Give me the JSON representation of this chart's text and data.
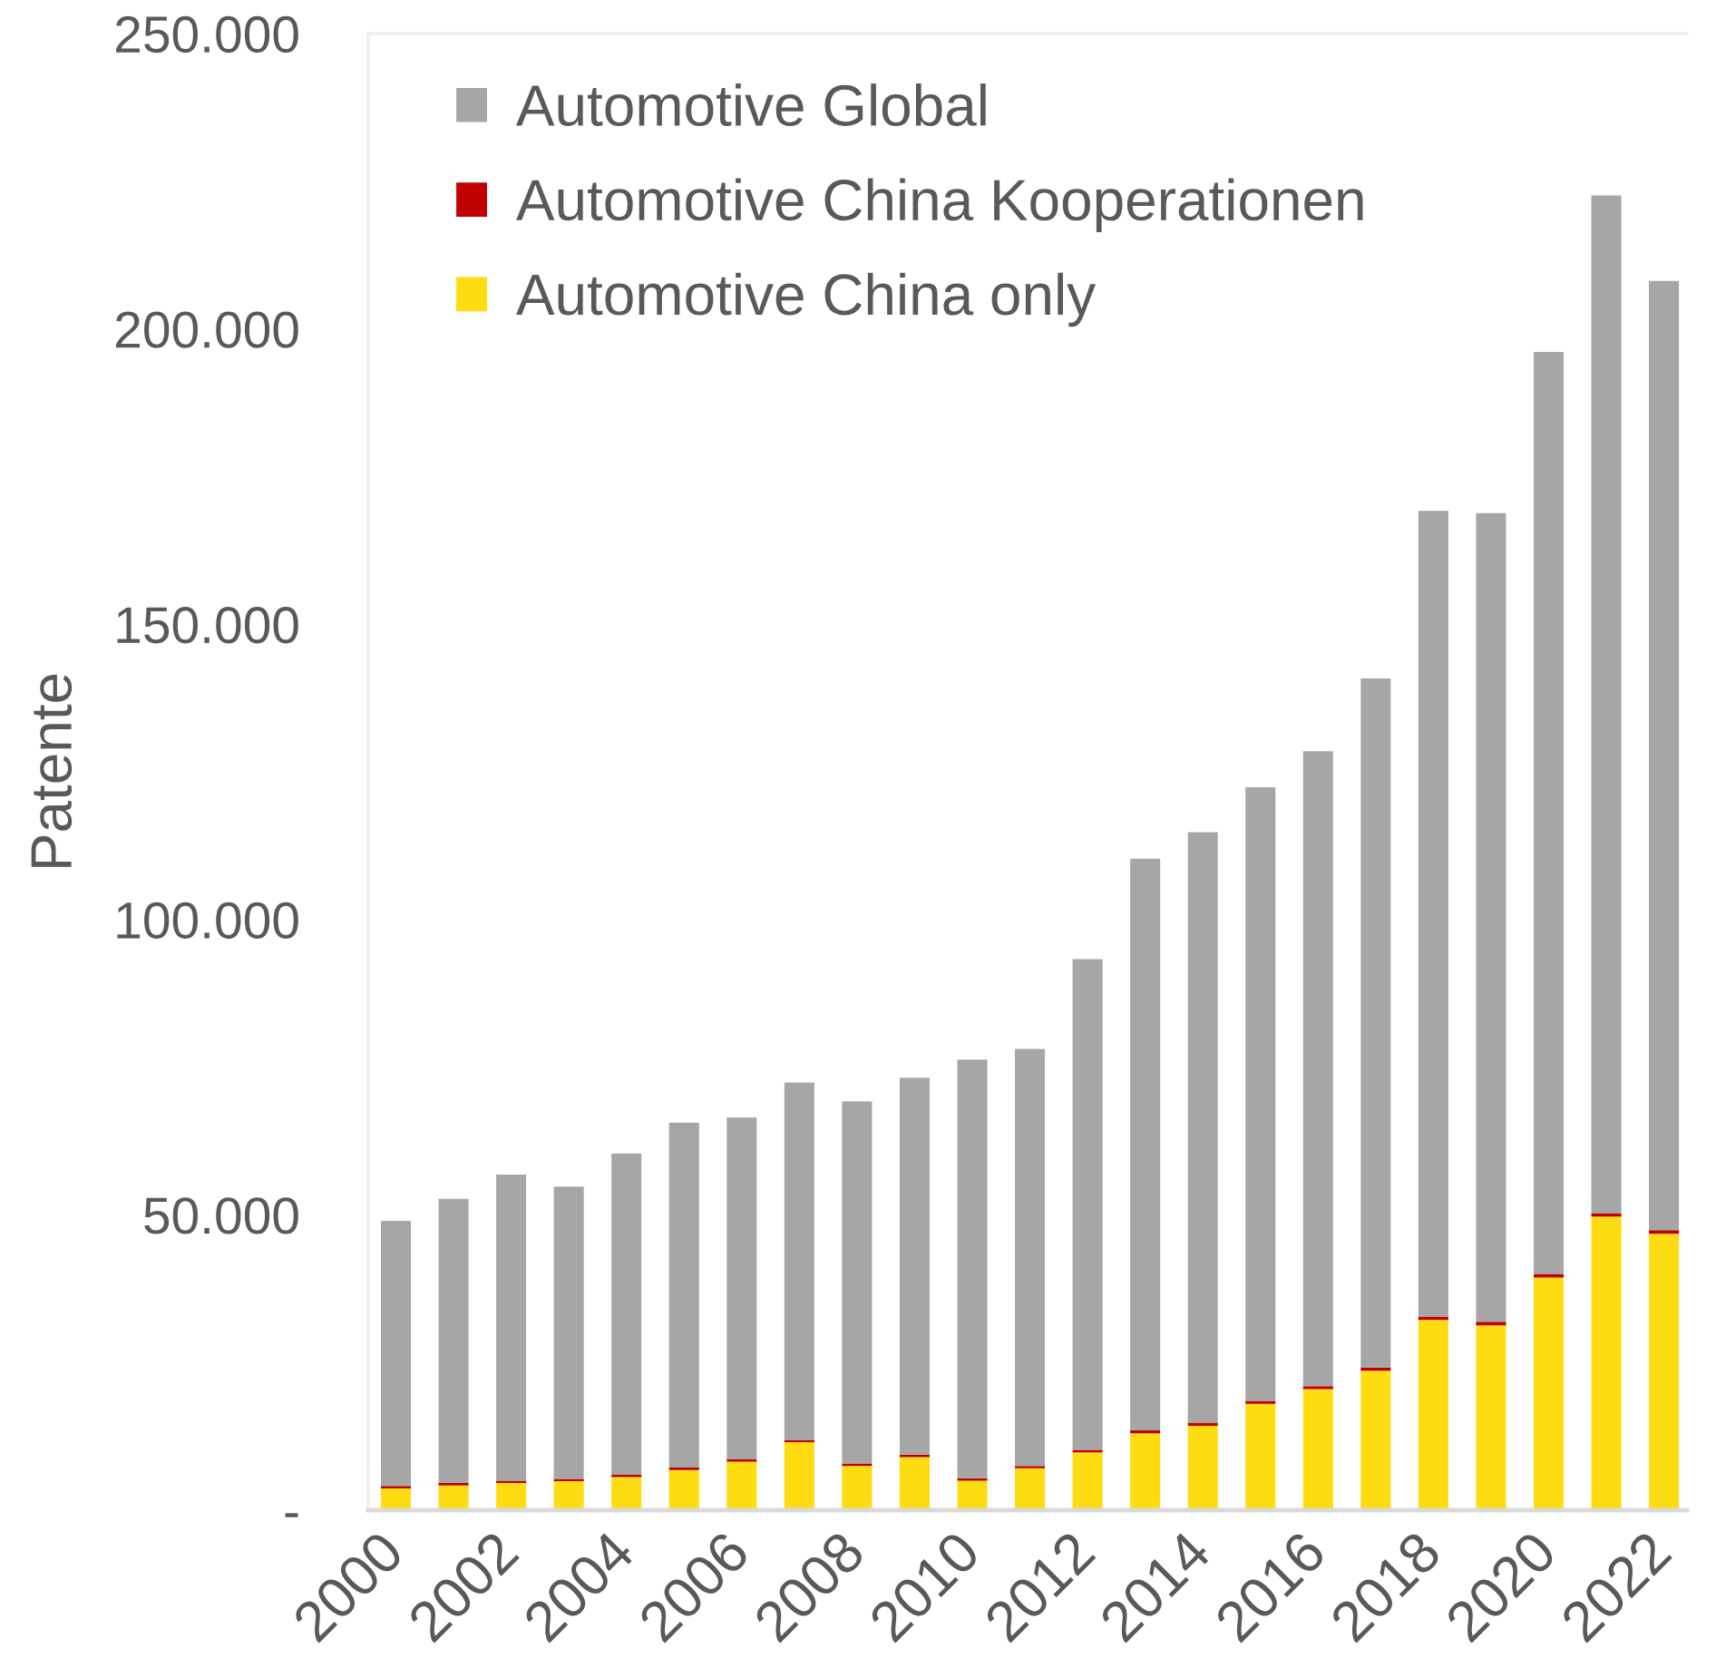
{
  "chart_data": {
    "type": "bar",
    "stacked": true,
    "ylabel": "Patente",
    "categories": [
      "2000",
      null,
      "2002",
      null,
      "2004",
      null,
      "2006",
      null,
      "2008",
      null,
      "2010",
      null,
      "2012",
      null,
      "2014",
      null,
      "2016",
      null,
      "2018",
      null,
      "2020",
      null,
      "2022"
    ],
    "series": [
      {
        "name": "Automotive China only",
        "color": "#fddc12",
        "values": [
          3700,
          4200,
          4600,
          4900,
          5600,
          6800,
          8200,
          11500,
          7500,
          9000,
          5000,
          7100,
          9800,
          13000,
          14300,
          18000,
          20500,
          23600,
          32200,
          31300,
          39400,
          49700,
          46800
        ]
      },
      {
        "name": "Automotive China Kooperationen",
        "color": "#c00000",
        "values": [
          400,
          400,
          400,
          400,
          400,
          400,
          400,
          400,
          400,
          400,
          400,
          400,
          400,
          500,
          500,
          500,
          500,
          500,
          600,
          600,
          600,
          600,
          600
        ]
      },
      {
        "name": "Automotive Global",
        "color": "#a6a6a6",
        "values": [
          44900,
          48100,
          51800,
          49500,
          54400,
          58400,
          57900,
          60500,
          61300,
          63800,
          70900,
          70600,
          83100,
          96800,
          100000,
          103900,
          107500,
          116700,
          136400,
          136900,
          156100,
          172300,
          160700
        ]
      }
    ],
    "ylim": [
      0,
      250000
    ],
    "yticks": [
      {
        "value": 0,
        "label": "-"
      },
      {
        "value": 50000,
        "label": "50.000"
      },
      {
        "value": 100000,
        "label": "100.000"
      },
      {
        "value": 150000,
        "label": "150.000"
      },
      {
        "value": 200000,
        "label": "200.000"
      },
      {
        "value": 250000,
        "label": "250.000"
      }
    ],
    "legend": "top left"
  }
}
